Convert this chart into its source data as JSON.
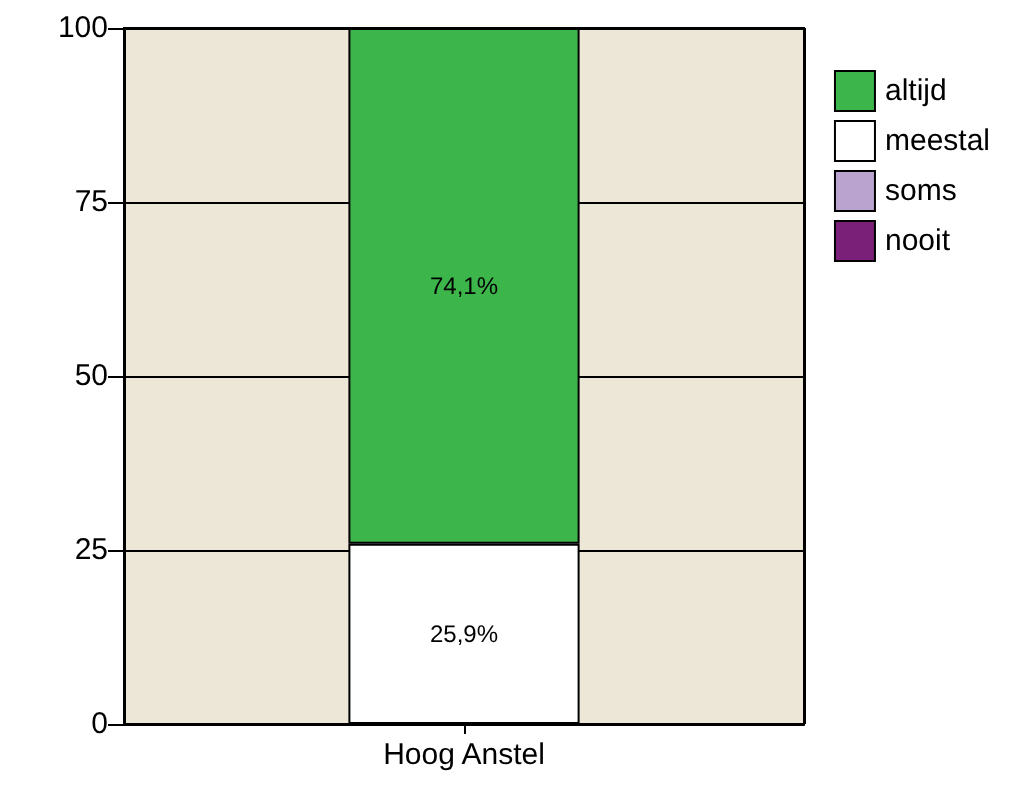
{
  "chart_data": {
    "type": "bar",
    "stacked": true,
    "categories": [
      "Hoog Anstel"
    ],
    "series": [
      {
        "name": "nooit",
        "color": "#7b2079",
        "values": [
          0
        ],
        "value_labels": [
          null
        ]
      },
      {
        "name": "soms",
        "color": "#bba3d0",
        "values": [
          0
        ],
        "value_labels": [
          null
        ]
      },
      {
        "name": "meestal",
        "color": "#ffffff",
        "values": [
          25.9
        ],
        "value_labels": [
          "25,9%"
        ]
      },
      {
        "name": "altijd",
        "color": "#3cb54a",
        "values": [
          74.1
        ],
        "value_labels": [
          "74,1%"
        ]
      }
    ],
    "ylim": [
      0,
      100
    ],
    "yticks": [
      0,
      25,
      50,
      75,
      100
    ],
    "grid": true,
    "legend": "right"
  }
}
